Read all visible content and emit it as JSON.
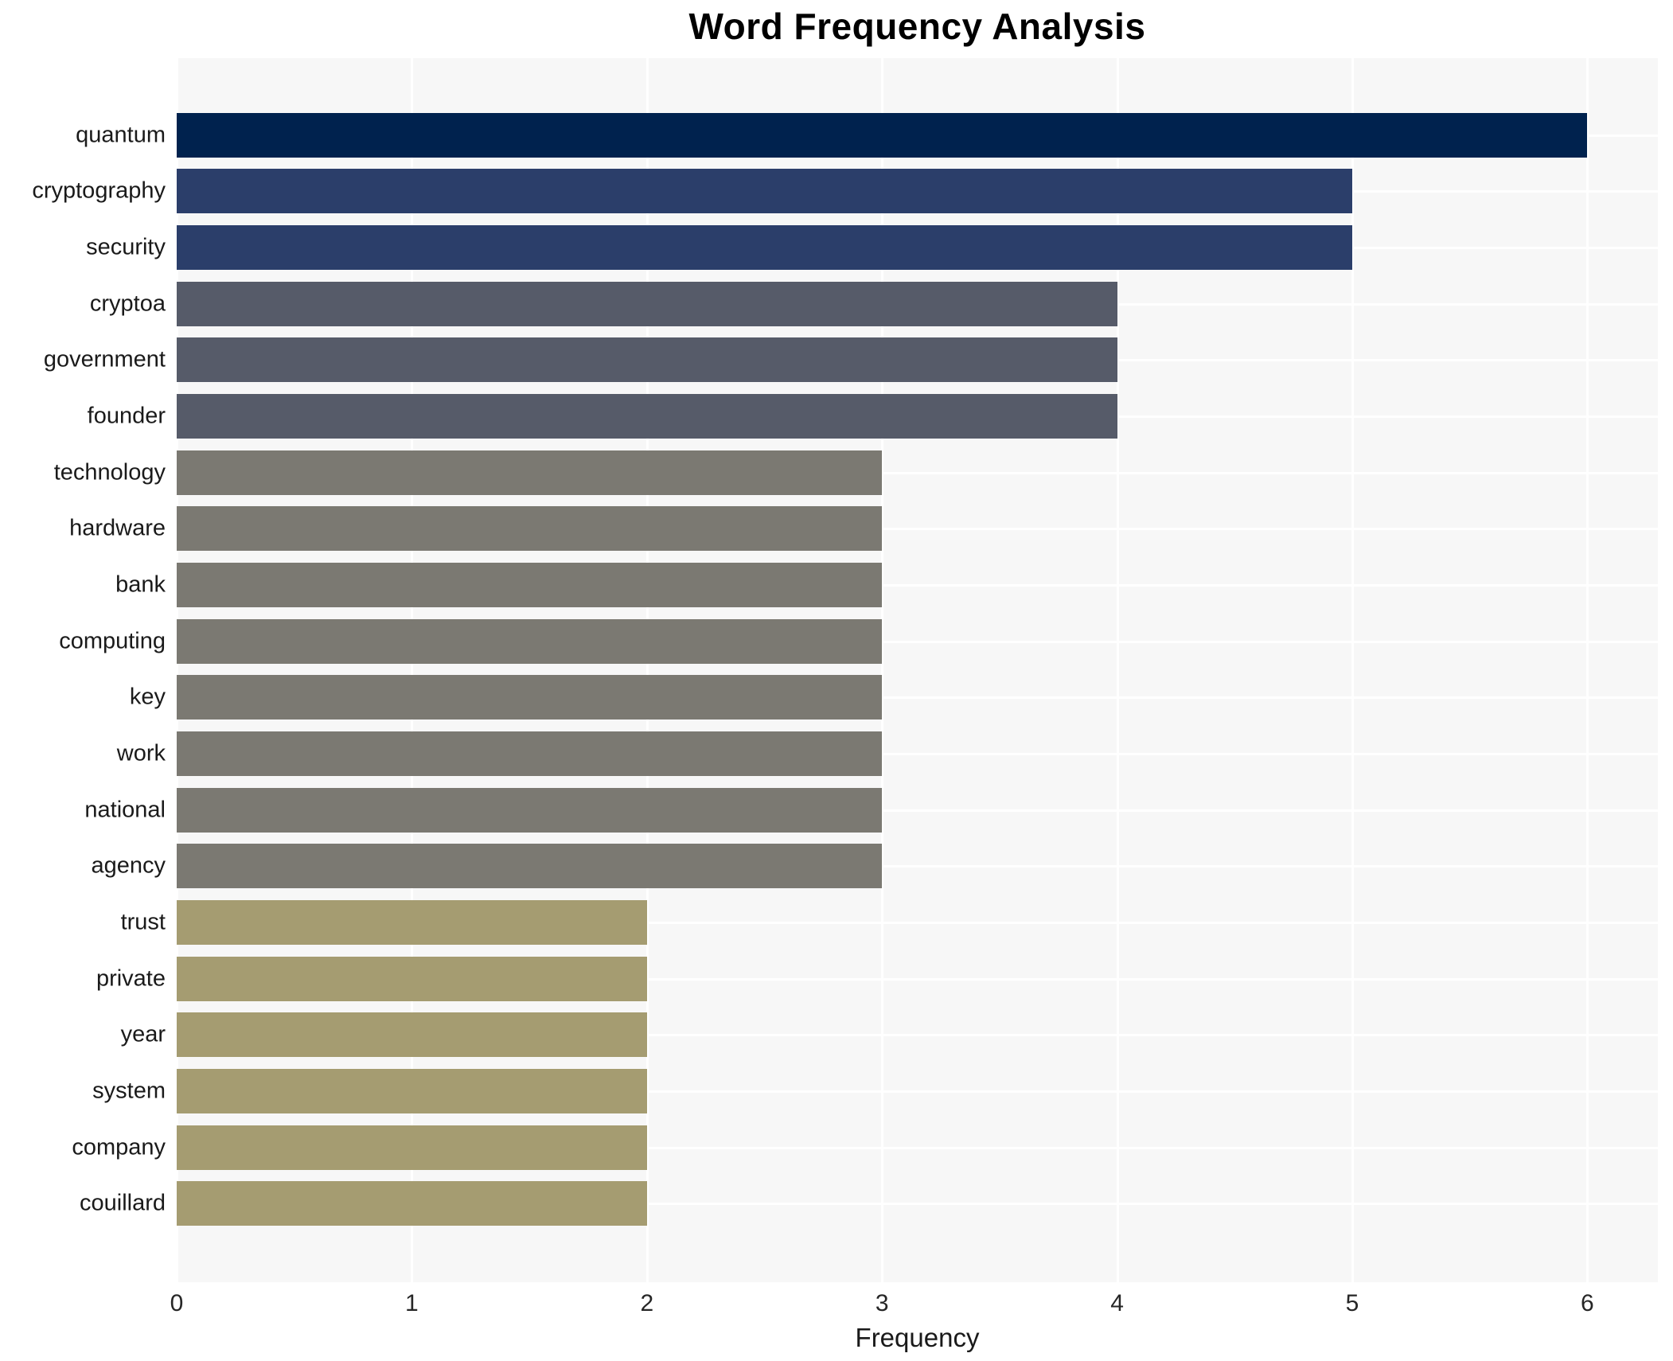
{
  "chart_data": {
    "type": "bar",
    "orientation": "horizontal",
    "title": "Word Frequency Analysis",
    "xlabel": "Frequency",
    "ylabel": "",
    "categories": [
      "quantum",
      "cryptography",
      "security",
      "cryptoa",
      "government",
      "founder",
      "technology",
      "hardware",
      "bank",
      "computing",
      "key",
      "work",
      "national",
      "agency",
      "trust",
      "private",
      "year",
      "system",
      "company",
      "couillard"
    ],
    "values": [
      6,
      5,
      5,
      4,
      4,
      4,
      3,
      3,
      3,
      3,
      3,
      3,
      3,
      3,
      2,
      2,
      2,
      2,
      2,
      2
    ],
    "bar_colors": [
      "#00224e",
      "#2b3e6a",
      "#2b3e6a",
      "#565b69",
      "#565b69",
      "#565b69",
      "#7b7972",
      "#7b7972",
      "#7b7972",
      "#7b7972",
      "#7b7972",
      "#7b7972",
      "#7b7972",
      "#7b7972",
      "#a59c71",
      "#a59c71",
      "#a59c71",
      "#a59c71",
      "#a59c71",
      "#a59c71"
    ],
    "xticks": [
      0,
      1,
      2,
      3,
      4,
      5,
      6
    ],
    "xlim": [
      0,
      6.3
    ],
    "grid": true,
    "legend": "none",
    "plot_bg_color": "#f7f7f7",
    "gridline_color": "#ffffff",
    "text_color": "#1a1a1a"
  }
}
